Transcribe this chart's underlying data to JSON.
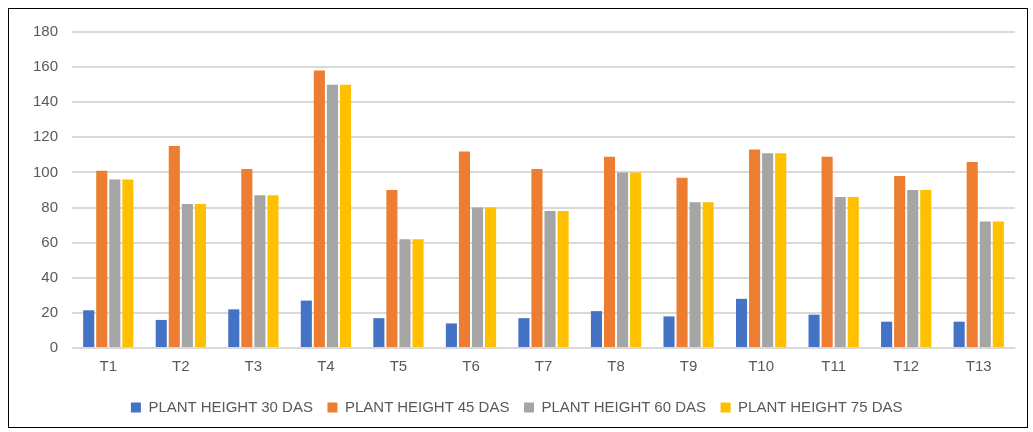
{
  "chart_data": {
    "type": "bar",
    "categories": [
      "T1",
      "T2",
      "T3",
      "T4",
      "T5",
      "T6",
      "T7",
      "T8",
      "T9",
      "T10",
      "T11",
      "T12",
      "T13"
    ],
    "series": [
      {
        "name": "PLANT HEIGHT 30 DAS",
        "color": "#4472c4",
        "values": [
          21.5,
          16,
          22,
          27,
          17,
          14,
          17,
          21,
          18,
          28,
          19,
          15,
          15
        ]
      },
      {
        "name": "PLANT HEIGHT 45 DAS",
        "color": "#ed7d31",
        "values": [
          101,
          115,
          102,
          158,
          90,
          112,
          102,
          109,
          97,
          113,
          109,
          98,
          106
        ]
      },
      {
        "name": "PLANT HEIGHT 60 DAS",
        "color": "#a5a5a5",
        "values": [
          96,
          82,
          87,
          150,
          62,
          80,
          78,
          100,
          83,
          111,
          86,
          90,
          72
        ]
      },
      {
        "name": "PLANT HEIGHT 75 DAS",
        "color": "#ffc000",
        "values": [
          96,
          82,
          87,
          150,
          62,
          80,
          78,
          100,
          83,
          111,
          86,
          90,
          72
        ]
      }
    ],
    "ylim": [
      0,
      180
    ],
    "yticks": [
      0,
      20,
      40,
      60,
      80,
      100,
      120,
      140,
      160,
      180
    ],
    "grid": "y",
    "legend": "bottom"
  }
}
